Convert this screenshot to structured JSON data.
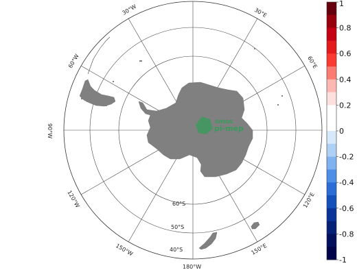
{
  "map": {
    "projection": "south-polar-stereographic",
    "lon_labels": {
      "w30": "30°W",
      "e30": "30°E",
      "w60": "60°W",
      "e60": "60°E",
      "w90": "90°W",
      "e90": "90°E",
      "w120": "120°W",
      "e120": "120°E",
      "w150": "150°W",
      "e150": "150°E",
      "s180": "180°W"
    },
    "lat_labels": {
      "s60": "60°S",
      "s50": "50°S",
      "s40": "40°S"
    },
    "logo": {
      "line1": "smos",
      "line2": "pi-mep",
      "color": "#3a9a5c"
    },
    "land_color": "#808080"
  },
  "colorbar": {
    "ticks": [
      "1",
      "0.8",
      "0.6",
      "0.4",
      "0.2",
      "0",
      "-0.2",
      "-0.4",
      "-0.6",
      "-0.8",
      "-1"
    ],
    "colors_top_to_bottom": [
      "#67000d",
      "#99000d",
      "#c50012",
      "#e41a1c",
      "#fb3b30",
      "#fc7b72",
      "#fdb8b3",
      "#fde0dd",
      "#ffffff",
      "#ffffff",
      "#d6e8fa",
      "#aed0f5",
      "#7fb2ee",
      "#4d8ee6",
      "#2a6dd6",
      "#1450bb",
      "#0a3399",
      "#061f77",
      "#03105c",
      "#01044a"
    ]
  }
}
